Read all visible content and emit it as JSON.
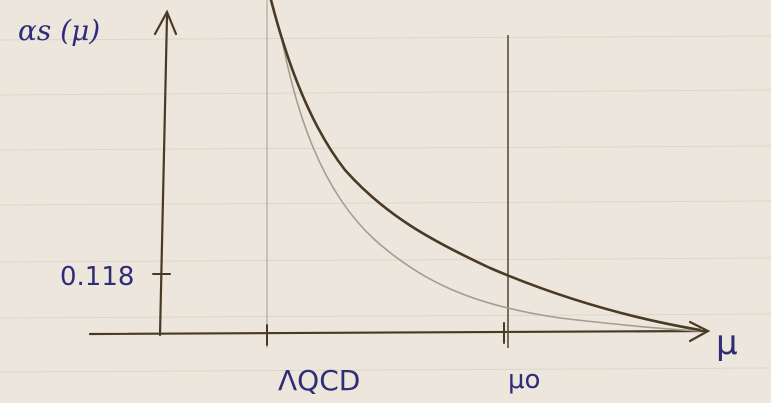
{
  "labels": {
    "y_axis": "αs (μ)",
    "x_axis": "μ",
    "y_tick": "0.118",
    "x_tick_lambda": "ΛQCD",
    "x_tick_mu0": "μo"
  },
  "colors": {
    "paper": "#ece6dc",
    "ink_blue": "#2f2c78",
    "pencil_dark": "#4a3a24",
    "pencil_light": "#9a948c",
    "ruled_lines": "#cfcab8"
  }
}
